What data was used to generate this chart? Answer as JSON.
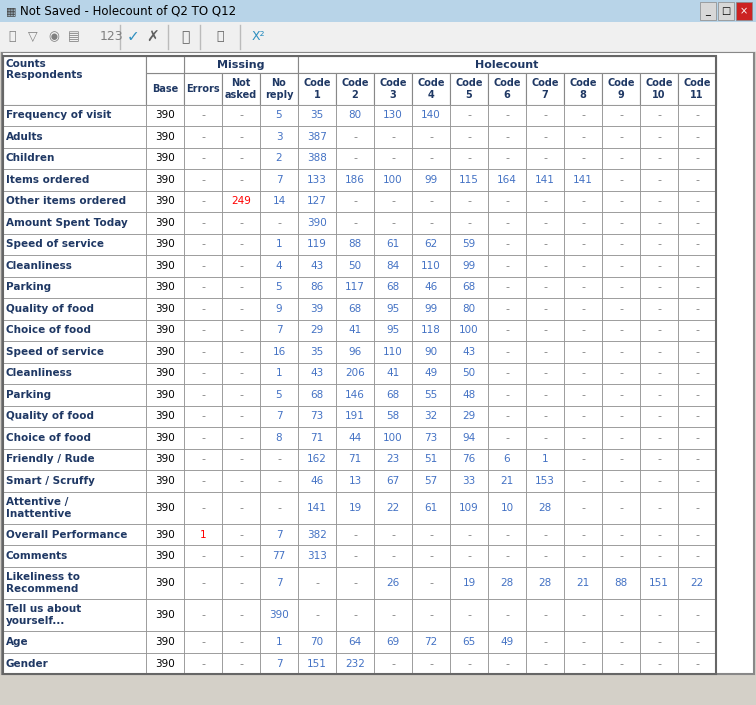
{
  "title": "Not Saved - Holecount of Q2 TO Q12",
  "col_headers_row2": [
    "Counts\nRespondents",
    "Base",
    "Errors",
    "Not\nasked",
    "No\nreply",
    "Code\n1",
    "Code\n2",
    "Code\n3",
    "Code\n4",
    "Code\n5",
    "Code\n6",
    "Code\n7",
    "Code\n8",
    "Code\n9",
    "Code\n10",
    "Code\n11"
  ],
  "rows": [
    [
      "Frequency of visit",
      "390",
      "-",
      "-",
      "5",
      "35",
      "80",
      "130",
      "140",
      "-",
      "-",
      "-",
      "-",
      "-",
      "-",
      "-"
    ],
    [
      "Adults",
      "390",
      "-",
      "-",
      "3",
      "387",
      "-",
      "-",
      "-",
      "-",
      "-",
      "-",
      "-",
      "-",
      "-",
      "-"
    ],
    [
      "Children",
      "390",
      "-",
      "-",
      "2",
      "388",
      "-",
      "-",
      "-",
      "-",
      "-",
      "-",
      "-",
      "-",
      "-",
      "-"
    ],
    [
      "Items ordered",
      "390",
      "-",
      "-",
      "7",
      "133",
      "186",
      "100",
      "99",
      "115",
      "164",
      "141",
      "141",
      "-",
      "-",
      "-"
    ],
    [
      "Other items ordered",
      "390",
      "-",
      "249",
      "14",
      "127",
      "-",
      "-",
      "-",
      "-",
      "-",
      "-",
      "-",
      "-",
      "-",
      "-"
    ],
    [
      "Amount Spent Today",
      "390",
      "-",
      "-",
      "-",
      "390",
      "-",
      "-",
      "-",
      "-",
      "-",
      "-",
      "-",
      "-",
      "-",
      "-"
    ],
    [
      "Speed of service",
      "390",
      "-",
      "-",
      "1",
      "119",
      "88",
      "61",
      "62",
      "59",
      "-",
      "-",
      "-",
      "-",
      "-",
      "-"
    ],
    [
      "Cleanliness",
      "390",
      "-",
      "-",
      "4",
      "43",
      "50",
      "84",
      "110",
      "99",
      "-",
      "-",
      "-",
      "-",
      "-",
      "-"
    ],
    [
      "Parking",
      "390",
      "-",
      "-",
      "5",
      "86",
      "117",
      "68",
      "46",
      "68",
      "-",
      "-",
      "-",
      "-",
      "-",
      "-"
    ],
    [
      "Quality of food",
      "390",
      "-",
      "-",
      "9",
      "39",
      "68",
      "95",
      "99",
      "80",
      "-",
      "-",
      "-",
      "-",
      "-",
      "-"
    ],
    [
      "Choice of food",
      "390",
      "-",
      "-",
      "7",
      "29",
      "41",
      "95",
      "118",
      "100",
      "-",
      "-",
      "-",
      "-",
      "-",
      "-"
    ],
    [
      "Speed of service",
      "390",
      "-",
      "-",
      "16",
      "35",
      "96",
      "110",
      "90",
      "43",
      "-",
      "-",
      "-",
      "-",
      "-",
      "-"
    ],
    [
      "Cleanliness",
      "390",
      "-",
      "-",
      "1",
      "43",
      "206",
      "41",
      "49",
      "50",
      "-",
      "-",
      "-",
      "-",
      "-",
      "-"
    ],
    [
      "Parking",
      "390",
      "-",
      "-",
      "5",
      "68",
      "146",
      "68",
      "55",
      "48",
      "-",
      "-",
      "-",
      "-",
      "-",
      "-"
    ],
    [
      "Quality of food",
      "390",
      "-",
      "-",
      "7",
      "73",
      "191",
      "58",
      "32",
      "29",
      "-",
      "-",
      "-",
      "-",
      "-",
      "-"
    ],
    [
      "Choice of food",
      "390",
      "-",
      "-",
      "8",
      "71",
      "44",
      "100",
      "73",
      "94",
      "-",
      "-",
      "-",
      "-",
      "-",
      "-"
    ],
    [
      "Friendly / Rude",
      "390",
      "-",
      "-",
      "-",
      "162",
      "71",
      "23",
      "51",
      "76",
      "6",
      "1",
      "-",
      "-",
      "-",
      "-"
    ],
    [
      "Smart / Scruffy",
      "390",
      "-",
      "-",
      "-",
      "46",
      "13",
      "67",
      "57",
      "33",
      "21",
      "153",
      "-",
      "-",
      "-",
      "-"
    ],
    [
      "Attentive /\nInattentive",
      "390",
      "-",
      "-",
      "-",
      "141",
      "19",
      "22",
      "61",
      "109",
      "10",
      "28",
      "-",
      "-",
      "-",
      "-"
    ],
    [
      "Overall Performance",
      "390",
      "1",
      "-",
      "7",
      "382",
      "-",
      "-",
      "-",
      "-",
      "-",
      "-",
      "-",
      "-",
      "-",
      "-"
    ],
    [
      "Comments",
      "390",
      "-",
      "-",
      "77",
      "313",
      "-",
      "-",
      "-",
      "-",
      "-",
      "-",
      "-",
      "-",
      "-",
      "-"
    ],
    [
      "Likeliness to\nRecommend",
      "390",
      "-",
      "-",
      "7",
      "-",
      "-",
      "26",
      "-",
      "19",
      "28",
      "28",
      "21",
      "88",
      "151",
      "22"
    ],
    [
      "Tell us about\nyourself...",
      "390",
      "-",
      "-",
      "390",
      "-",
      "-",
      "-",
      "-",
      "-",
      "-",
      "-",
      "-",
      "-",
      "-",
      "-"
    ],
    [
      "Age",
      "390",
      "-",
      "-",
      "1",
      "70",
      "64",
      "69",
      "72",
      "65",
      "49",
      "-",
      "-",
      "-",
      "-",
      "-"
    ],
    [
      "Gender",
      "390",
      "-",
      "-",
      "7",
      "151",
      "232",
      "-",
      "-",
      "-",
      "-",
      "-",
      "-",
      "-",
      "-",
      "-"
    ]
  ],
  "special_cell_colors": {
    "4,2": "#CC00CC",
    "4,3": "#FF0000",
    "19,2": "#FF0000"
  },
  "num_color": "#4472C4",
  "dash_color": "#808080",
  "label_color": "#1F3864",
  "title_bar_color": "#C8DCEE",
  "toolbar_bg": "#F0F0F0",
  "table_bg": "#FFFFFF",
  "border_color": "#888888"
}
